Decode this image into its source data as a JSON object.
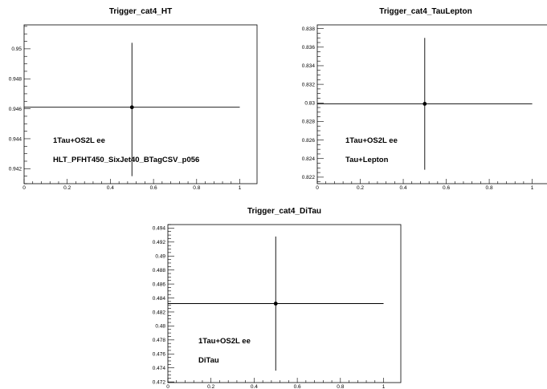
{
  "chart_data": [
    {
      "type": "scatter",
      "title": "Trigger_cat4_HT",
      "xlabel": "",
      "ylabel": "",
      "xlim": [
        0,
        1.08
      ],
      "ylim": [
        0.941,
        0.9516
      ],
      "xticks": [
        0,
        0.2,
        0.4,
        0.6,
        0.8,
        1
      ],
      "xtick_labels": [
        "0",
        "0.2",
        "0.4",
        "0.6",
        "0.8",
        "1"
      ],
      "yticks": [
        0.942,
        0.944,
        0.946,
        0.948,
        0.95
      ],
      "ytick_labels": [
        "0.942",
        "0.944",
        "0.946",
        "0.948",
        "0.95"
      ],
      "points": [
        {
          "x": 0.5,
          "y": 0.9461,
          "xerr": 0.5,
          "yerr_low": 0.9415,
          "yerr_high": 0.9504
        }
      ],
      "annotations": [
        "1Tau+OS2L ee",
        "HLT_PFHT450_SixJet40_BTagCSV_p056"
      ],
      "grid": false
    },
    {
      "type": "scatter",
      "title": "Trigger_cat4_TauLepton",
      "xlabel": "",
      "ylabel": "",
      "xlim": [
        0,
        1.08
      ],
      "ylim": [
        0.8213,
        0.8384
      ],
      "xticks": [
        0,
        0.2,
        0.4,
        0.6,
        0.8,
        1
      ],
      "xtick_labels": [
        "0",
        "0.2",
        "0.4",
        "0.6",
        "0.8",
        "1"
      ],
      "yticks": [
        0.822,
        0.824,
        0.826,
        0.828,
        0.83,
        0.832,
        0.834,
        0.836,
        0.838
      ],
      "ytick_labels": [
        "0.822",
        "0.824",
        "0.826",
        "0.828",
        "0.83",
        "0.832",
        "0.834",
        "0.836",
        "0.838"
      ],
      "points": [
        {
          "x": 0.5,
          "y": 0.8299,
          "xerr": 0.5,
          "yerr_low": 0.8228,
          "yerr_high": 0.837
        }
      ],
      "annotations": [
        "1Tau+OS2L ee",
        "Tau+Lepton"
      ],
      "grid": false
    },
    {
      "type": "scatter",
      "title": "Trigger_cat4_DiTau",
      "xlabel": "",
      "ylabel": "",
      "xlim": [
        0,
        1.08
      ],
      "ylim": [
        0.4719,
        0.4945
      ],
      "xticks": [
        0,
        0.2,
        0.4,
        0.6,
        0.8,
        1
      ],
      "xtick_labels": [
        "0",
        "0.2",
        "0.4",
        "0.6",
        "0.8",
        "1"
      ],
      "yticks": [
        0.472,
        0.474,
        0.476,
        0.478,
        0.48,
        0.482,
        0.484,
        0.486,
        0.488,
        0.49,
        0.492,
        0.494
      ],
      "ytick_labels": [
        "0.472",
        "0.474",
        "0.476",
        "0.478",
        "0.48",
        "0.482",
        "0.484",
        "0.486",
        "0.488",
        "0.49",
        "0.492",
        "0.494"
      ],
      "points": [
        {
          "x": 0.5,
          "y": 0.4832,
          "xerr": 0.5,
          "yerr_low": 0.4736,
          "yerr_high": 0.4928
        }
      ],
      "annotations": [
        "1Tau+OS2L ee",
        "DiTau"
      ],
      "grid": false
    }
  ]
}
